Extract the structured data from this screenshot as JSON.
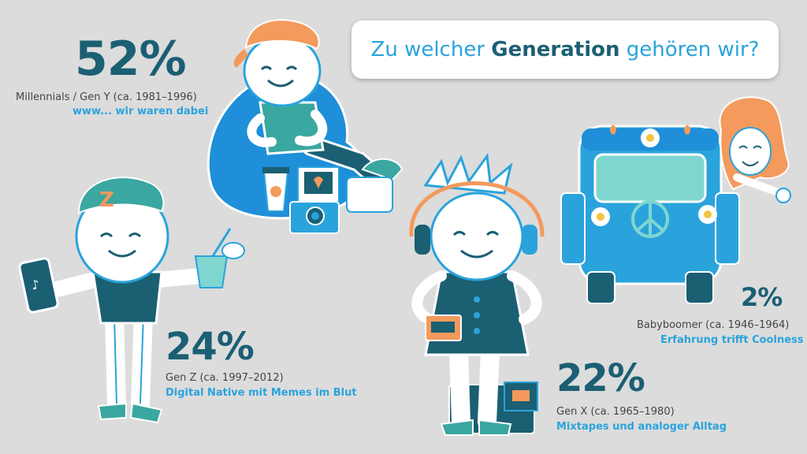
{
  "title": {
    "pre": "Zu welcher ",
    "bold": "Generation",
    "post": " gehören wir?"
  },
  "groups": [
    {
      "percent": "52%",
      "label": "Millennials / Gen Y (ca. 1981–1996)",
      "tagline": "www... wir waren dabei"
    },
    {
      "percent": "24%",
      "label": "Gen Z (ca. 1997–2012)",
      "tagline": "Digital Native mit Memes im Blut"
    },
    {
      "percent": "22%",
      "label": "Gen X (ca. 1965–1980)",
      "tagline": "Mixtapes und analoger Alltag"
    },
    {
      "percent": "2%",
      "label": "Babyboomer (ca. 1946–1964)",
      "tagline": "Erfahrung trifft Coolness"
    }
  ],
  "colors": {
    "background": "#dcdcdc",
    "navy": "#1b5f73",
    "blue": "#2aa3dc",
    "orange": "#f39a5c"
  },
  "icons": [
    "beanbag-millennial-illustration",
    "genz-character-illustration",
    "genx-character-illustration",
    "vw-bus-illustration",
    "redhead-woman-illustration",
    "polaroid-camera-icon",
    "coffee-cup-icon",
    "smartphone-icon",
    "bubble-tea-icon",
    "headphones-icon",
    "cassette-player-icon",
    "boombox-icon",
    "peace-sign-icon",
    "daisy-icon"
  ]
}
